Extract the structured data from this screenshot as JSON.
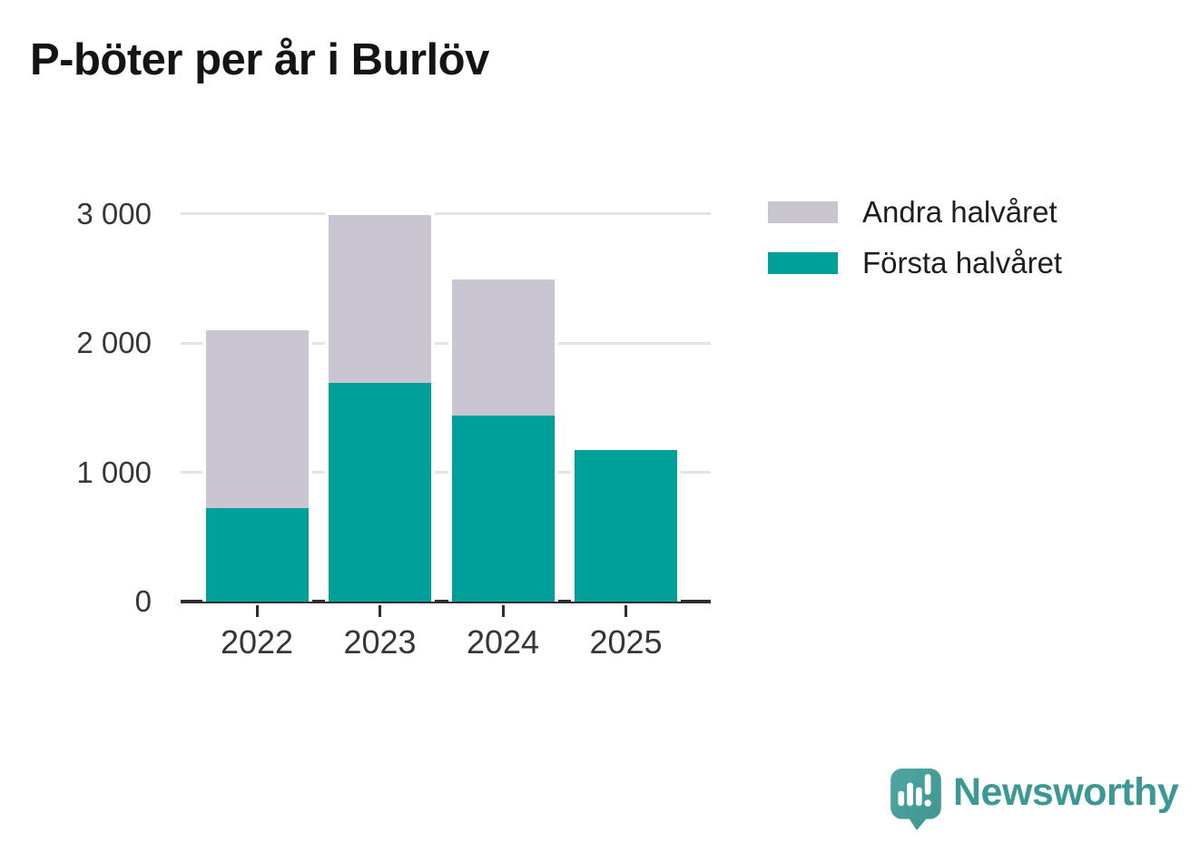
{
  "title": "P-böter per år i Burlöv",
  "colors": {
    "first_half_teal": "#00A09A",
    "second_half_gray": "#C9C6D2",
    "gridline": "#E4E4E4",
    "axis_line": "#2E2E2E",
    "axis_text": "#363636",
    "title_text": "#141414",
    "logo_teal": "#3B9894"
  },
  "legend": {
    "items": [
      {
        "label": "Andra halvåret",
        "color": "#C9C6D2"
      },
      {
        "label": "Första halvåret",
        "color": "#00A09A"
      }
    ]
  },
  "chart_data": {
    "type": "bar",
    "stacked": true,
    "title": "P-böter per år i Burlöv",
    "categories": [
      "2022",
      "2023",
      "2024",
      "2025"
    ],
    "series": [
      {
        "name": "Första halvåret",
        "color": "#00A09A",
        "values": [
          720,
          1690,
          1440,
          1170
        ]
      },
      {
        "name": "Andra halvåret",
        "color": "#C9C6D2",
        "values": [
          1380,
          1300,
          1050,
          0
        ]
      }
    ],
    "totals": [
      2100,
      2990,
      2490,
      1170
    ],
    "xlabel": "",
    "ylabel": "",
    "ylim": [
      0,
      3180
    ],
    "yticks": [
      0,
      1000,
      2000,
      3000
    ],
    "ytick_labels": [
      "0",
      "1 000",
      "2 000",
      "3 000"
    ],
    "grid": true,
    "legend_position": "upper-right-outside"
  },
  "branding": {
    "logo_text": "Newsworthy",
    "logo_icon": "newsworthy-speech-bubble-chart-icon"
  }
}
